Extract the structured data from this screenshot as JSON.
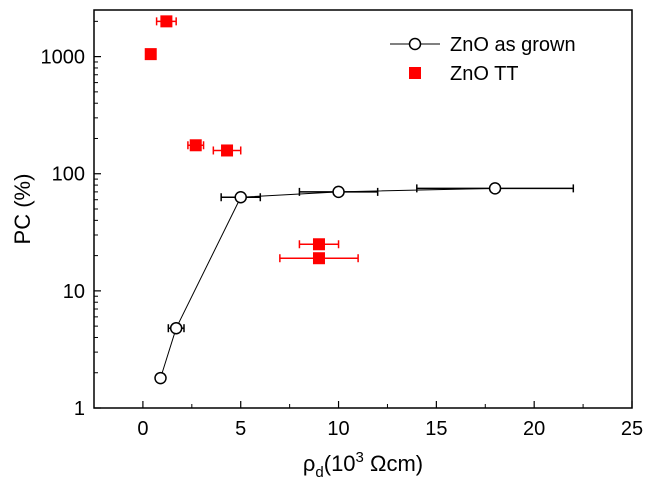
{
  "chart_data": {
    "type": "scatter",
    "xlabel": "ρd(10³ Ωcm)",
    "ylabel": "PC (%)",
    "xlim": [
      -2.5,
      25
    ],
    "ylim": [
      1,
      2500
    ],
    "x_ticks": [
      0,
      5,
      10,
      15,
      20,
      25
    ],
    "x_tick_labels": [
      "0",
      "5",
      "10",
      "15",
      "20",
      "25"
    ],
    "y_ticks": [
      1,
      10,
      100,
      1000
    ],
    "y_tick_labels": [
      "1",
      "10",
      "100",
      "1000"
    ],
    "y_scale": "log",
    "grid": false,
    "legend_position": "top-right",
    "series": [
      {
        "name": "ZnO as grown",
        "marker": "open-circle",
        "line": true,
        "color": "#000000",
        "points": [
          {
            "x": 0.9,
            "y": 1.8,
            "xerr": 0
          },
          {
            "x": 1.7,
            "y": 4.8,
            "xerr": 0.4
          },
          {
            "x": 5.0,
            "y": 63,
            "xerr": 1.0
          },
          {
            "x": 10.0,
            "y": 70,
            "xerr": 2.0
          },
          {
            "x": 18.0,
            "y": 75,
            "xerr": 4.0
          }
        ]
      },
      {
        "name": "ZnO TT",
        "marker": "filled-square",
        "line": false,
        "color": "#ff0000",
        "points": [
          {
            "x": 0.4,
            "y": 1050,
            "xerr": 0
          },
          {
            "x": 1.2,
            "y": 2000,
            "xerr": 0.5
          },
          {
            "x": 2.7,
            "y": 175,
            "xerr": 0.4
          },
          {
            "x": 4.3,
            "y": 158,
            "xerr": 0.7
          },
          {
            "x": 9.0,
            "y": 25,
            "xerr": 1.0
          },
          {
            "x": 9.0,
            "y": 19,
            "xerr": 2.0
          }
        ]
      }
    ]
  }
}
